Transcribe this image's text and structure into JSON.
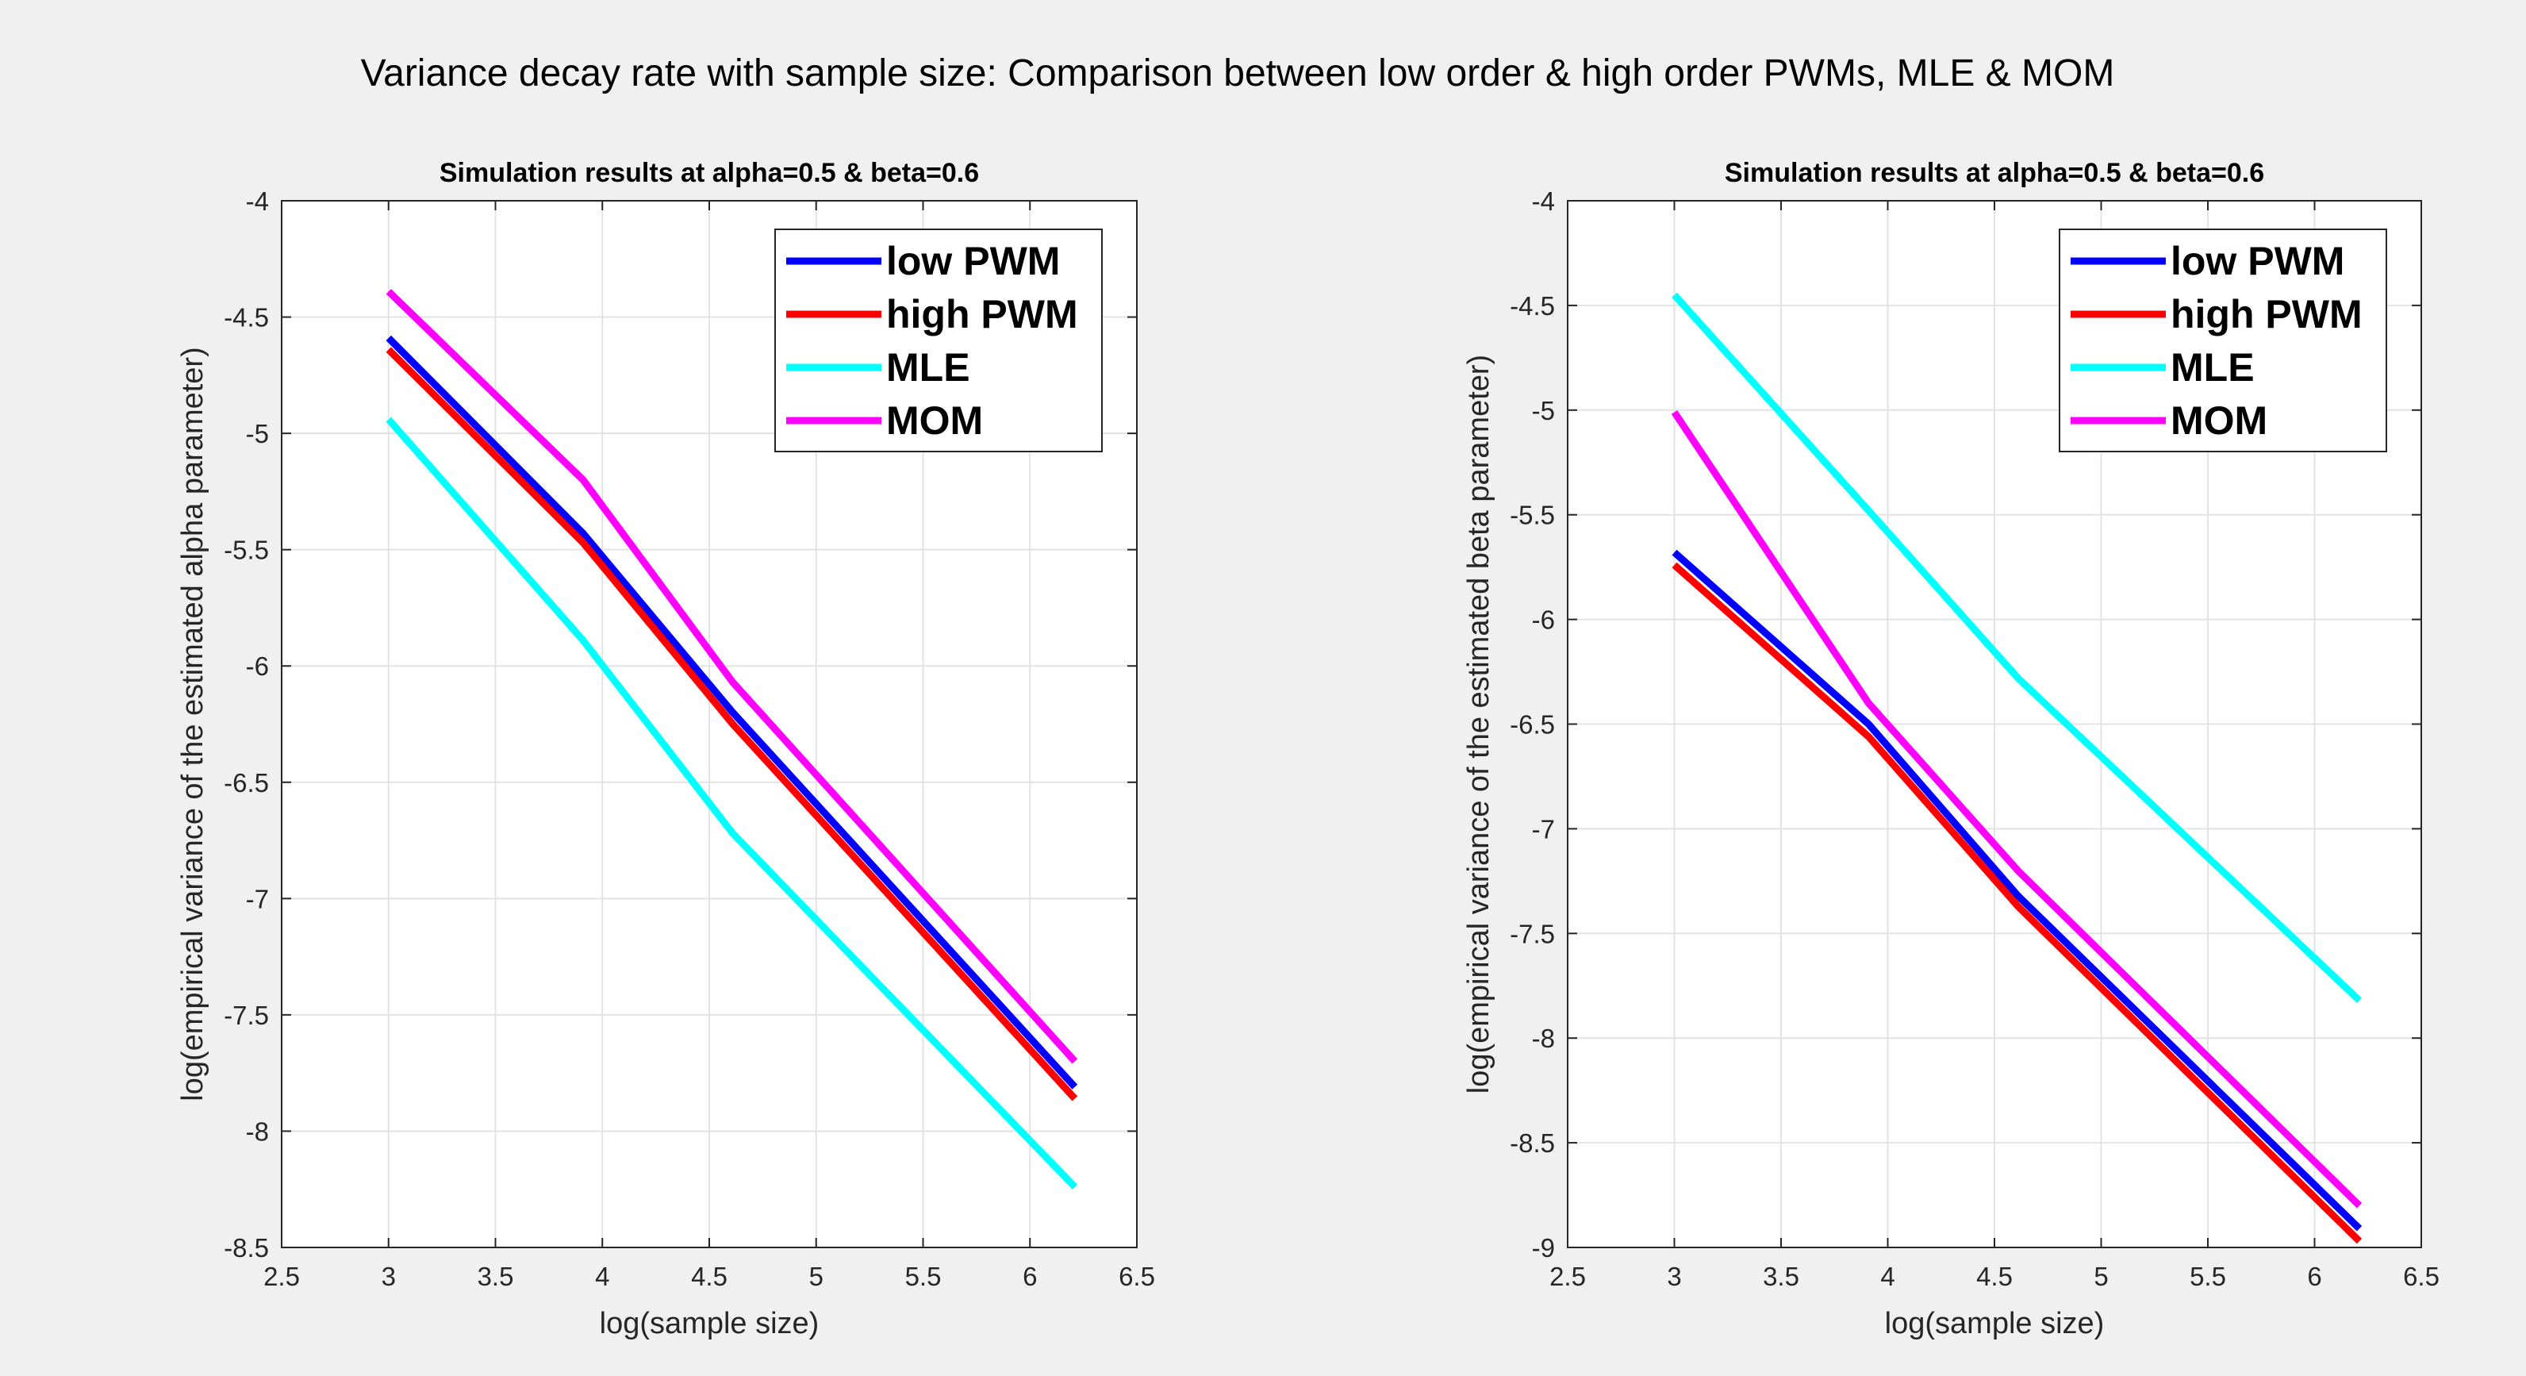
{
  "suptitle": "Variance decay rate with sample size: Comparison between low order & high order PWMs, MLE & MOM",
  "colors": {
    "figure_bg": "#f0f0f0",
    "axes_bg": "#ffffff",
    "grid": "#e3e3e3",
    "axis": "#262626"
  },
  "chart_data": [
    {
      "type": "line",
      "title": "Simulation results at alpha=0.5 & beta=0.6",
      "xlabel": "log(sample size)",
      "ylabel": "log(empirical variance of the estimated alpha parameter)",
      "xlim": [
        2.5,
        6.5
      ],
      "ylim": [
        -8.5,
        -4
      ],
      "xticks": [
        2.5,
        3,
        3.5,
        4,
        4.5,
        5,
        5.5,
        6,
        6.5
      ],
      "xtick_labels": [
        "2.5",
        "3",
        "3.5",
        "4",
        "4.5",
        "5",
        "5.5",
        "6",
        "6.5"
      ],
      "yticks": [
        -4,
        -4.5,
        -5,
        -5.5,
        -6,
        -6.5,
        -7,
        -7.5,
        -8,
        -8.5
      ],
      "ytick_labels": [
        "-4",
        "-4.5",
        "-5",
        "-5.5",
        "-6",
        "-6.5",
        "-7",
        "-7.5",
        "-8",
        "-8.5"
      ],
      "grid": true,
      "legend_position": "top-right",
      "x": [
        3.0,
        3.91,
        4.61,
        6.21
      ],
      "series": [
        {
          "name": "low PWM",
          "color": "#0000ff",
          "values": [
            -4.59,
            -5.43,
            -6.2,
            -7.81
          ]
        },
        {
          "name": "high PWM",
          "color": "#ff0000",
          "values": [
            -4.64,
            -5.47,
            -6.25,
            -7.86
          ]
        },
        {
          "name": "MLE",
          "color": "#00ffff",
          "values": [
            -4.94,
            -5.89,
            -6.72,
            -8.24
          ]
        },
        {
          "name": "MOM",
          "color": "#ff00ff",
          "values": [
            -4.39,
            -5.2,
            -6.07,
            -7.7
          ]
        }
      ]
    },
    {
      "type": "line",
      "title": "Simulation results at alpha=0.5 & beta=0.6",
      "xlabel": "log(sample size)",
      "ylabel": "log(empirical variance of the estimated beta parameter)",
      "xlim": [
        2.5,
        6.5
      ],
      "ylim": [
        -9,
        -4
      ],
      "xticks": [
        2.5,
        3,
        3.5,
        4,
        4.5,
        5,
        5.5,
        6,
        6.5
      ],
      "xtick_labels": [
        "2.5",
        "3",
        "3.5",
        "4",
        "4.5",
        "5",
        "5.5",
        "6",
        "6.5"
      ],
      "yticks": [
        -4,
        -4.5,
        -5,
        -5.5,
        -6,
        -6.5,
        -7,
        -7.5,
        -8,
        -8.5,
        -9
      ],
      "ytick_labels": [
        "-4",
        "-4.5",
        "-5",
        "-5.5",
        "-6",
        "-6.5",
        "-7",
        "-7.5",
        "-8",
        "-8.5",
        "-9"
      ],
      "grid": true,
      "legend_position": "top-right",
      "x": [
        3.0,
        3.91,
        4.61,
        6.21
      ],
      "series": [
        {
          "name": "low PWM",
          "color": "#0000ff",
          "values": [
            -5.68,
            -6.5,
            -7.32,
            -8.91
          ]
        },
        {
          "name": "high PWM",
          "color": "#ff0000",
          "values": [
            -5.74,
            -6.56,
            -7.37,
            -8.97
          ]
        },
        {
          "name": "MLE",
          "color": "#00ffff",
          "values": [
            -4.45,
            -5.48,
            -6.28,
            -7.82
          ]
        },
        {
          "name": "MOM",
          "color": "#ff00ff",
          "values": [
            -5.01,
            -6.4,
            -7.2,
            -8.8
          ]
        }
      ]
    }
  ]
}
